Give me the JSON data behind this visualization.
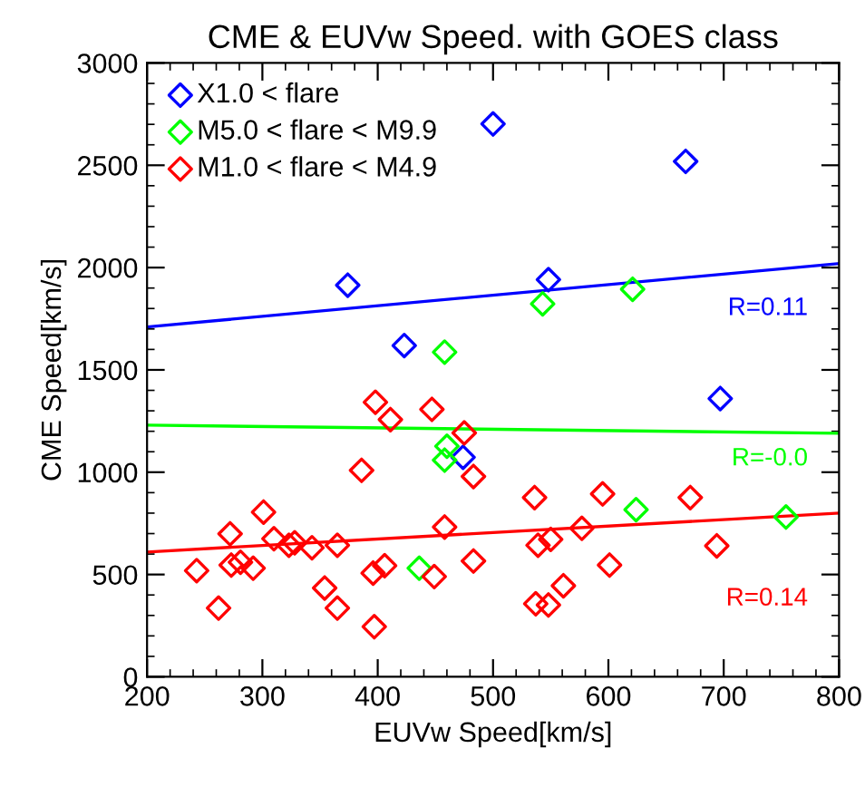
{
  "chart_data": {
    "type": "scatter",
    "title": "CME & EUVw Speed. with GOES class",
    "xlabel": "EUVw Speed[km/s]",
    "ylabel": "CME Speed[km/s]",
    "xlim": [
      200,
      800
    ],
    "xticks": [
      200,
      300,
      400,
      500,
      600,
      700,
      800
    ],
    "ylim": [
      0,
      3000
    ],
    "yticks": [
      0,
      500,
      1000,
      1500,
      2000,
      2500,
      3000
    ],
    "marker": "diamond",
    "legend": "top left",
    "grid": false,
    "series": [
      {
        "name": "X1.0 < flare",
        "color": "#0000ff",
        "x": [
          374,
          500,
          667,
          548,
          423,
          697,
          474
        ],
        "values": [
          1914,
          2702,
          2519,
          1941,
          1619,
          1360,
          1073
        ]
      },
      {
        "name": "M5.0 < flare < M9.9",
        "color": "#00ff00",
        "x": [
          543,
          621,
          458,
          460,
          458,
          436,
          624,
          754
        ],
        "values": [
          1823,
          1894,
          1587,
          1127,
          1059,
          531,
          817,
          781
        ]
      },
      {
        "name": "M1.0 < flare < M4.9",
        "color": "#ff0000",
        "x": [
          243,
          262,
          272,
          273,
          281,
          292,
          301,
          310,
          323,
          328,
          343,
          354,
          365,
          365,
          386,
          396,
          397,
          398,
          406,
          411,
          447,
          449,
          458,
          475,
          483,
          483,
          536,
          537,
          539,
          548,
          550,
          561,
          577,
          595,
          601,
          671,
          694
        ],
        "values": [
          519,
          336,
          699,
          546,
          560,
          531,
          805,
          675,
          643,
          655,
          631,
          434,
          643,
          336,
          1009,
          507,
          245,
          1342,
          543,
          1257,
          1307,
          490,
          732,
          1192,
          979,
          566,
          876,
          357,
          643,
          351,
          672,
          445,
          726,
          894,
          546,
          876,
          640
        ]
      },
      {
        "type": "line",
        "marker": "none",
        "color": "#0000ff",
        "x": [
          200,
          800
        ],
        "values": [
          1710,
          2020
        ]
      },
      {
        "type": "line",
        "marker": "none",
        "color": "#00ff00",
        "x": [
          200,
          800
        ],
        "values": [
          1230,
          1190
        ]
      },
      {
        "type": "line",
        "marker": "none",
        "color": "#ff0000",
        "x": [
          200,
          800
        ],
        "values": [
          610,
          800
        ]
      }
    ],
    "annotations": [
      "R=0.11",
      "R=-0.0",
      "R=0.14"
    ]
  }
}
